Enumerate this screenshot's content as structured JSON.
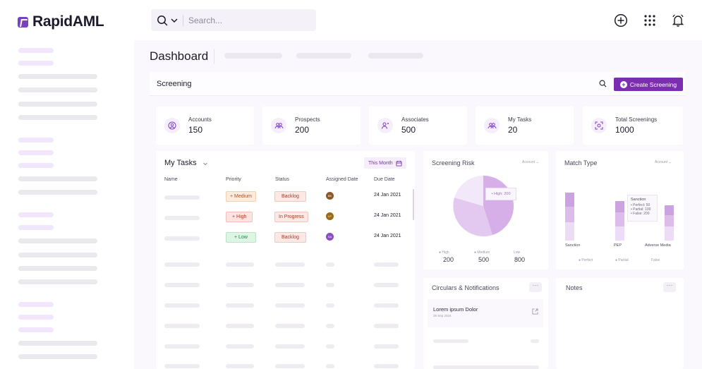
{
  "app": {
    "name": "RapidAML"
  },
  "search": {
    "placeholder": "Search..."
  },
  "page": {
    "title": "Dashboard"
  },
  "screening": {
    "label": "Screening",
    "create_label": "Create Screening"
  },
  "stats": [
    {
      "label": "Accounts",
      "value": "150",
      "icon": "user-circle-icon"
    },
    {
      "label": "Prospects",
      "value": "200",
      "icon": "users-icon"
    },
    {
      "label": "Associates",
      "value": "500",
      "icon": "user-link-icon"
    },
    {
      "label": "My Tasks",
      "value": "20",
      "icon": "users-task-icon"
    },
    {
      "label": "Total Screenings",
      "value": "1000",
      "icon": "scan-face-icon"
    }
  ],
  "tasks": {
    "title": "My Tasks",
    "filter": "This Month",
    "columns": [
      "Name",
      "Priority",
      "Status",
      "Assigned Date",
      "Due Date"
    ],
    "rows": [
      {
        "priority": "+ Medium",
        "status": "Backlog",
        "avatar": "BK",
        "avatar_color": "#8b5a2b",
        "due": "24 Jan 2021"
      },
      {
        "priority": "+ High",
        "status": "In Progress",
        "avatar": "LP",
        "avatar_color": "#9a6a1a",
        "due": "24 Jan 2021"
      },
      {
        "priority": "+ Low",
        "status": "Backlog",
        "avatar": "SA",
        "avatar_color": "#8a4fc0",
        "due": "24 Jan 2021"
      }
    ]
  },
  "risk": {
    "title": "Screening Risk",
    "filter": "Account",
    "tooltip": "• High: 200",
    "legend": [
      {
        "label": "High",
        "value": "200"
      },
      {
        "label": "Medium",
        "value": "500"
      },
      {
        "label": "Low",
        "value": "800"
      }
    ]
  },
  "match": {
    "title": "Match Type",
    "filter": "Account",
    "categories": [
      "Sanction",
      "PEP",
      "Adverse Media"
    ],
    "tooltip": {
      "title": "Sanction",
      "lines": [
        "• Perfect: 50",
        "• Partial: 100",
        "• False: 200"
      ]
    },
    "legend": [
      "Perfect",
      "Partial",
      "False"
    ]
  },
  "circulars": {
    "title": "Circulars & Notifications",
    "item_title": "Lorem ipsum Dolor",
    "item_date": "26 Sep 2024"
  },
  "notes": {
    "title": "Notes"
  },
  "colors": {
    "brand": "#7b2fb0",
    "accent_light": "#f1e6fb",
    "pie_dark": "#d6aee8",
    "pie_mid": "#e3c8f0",
    "pie_light": "#f3e8fa"
  }
}
